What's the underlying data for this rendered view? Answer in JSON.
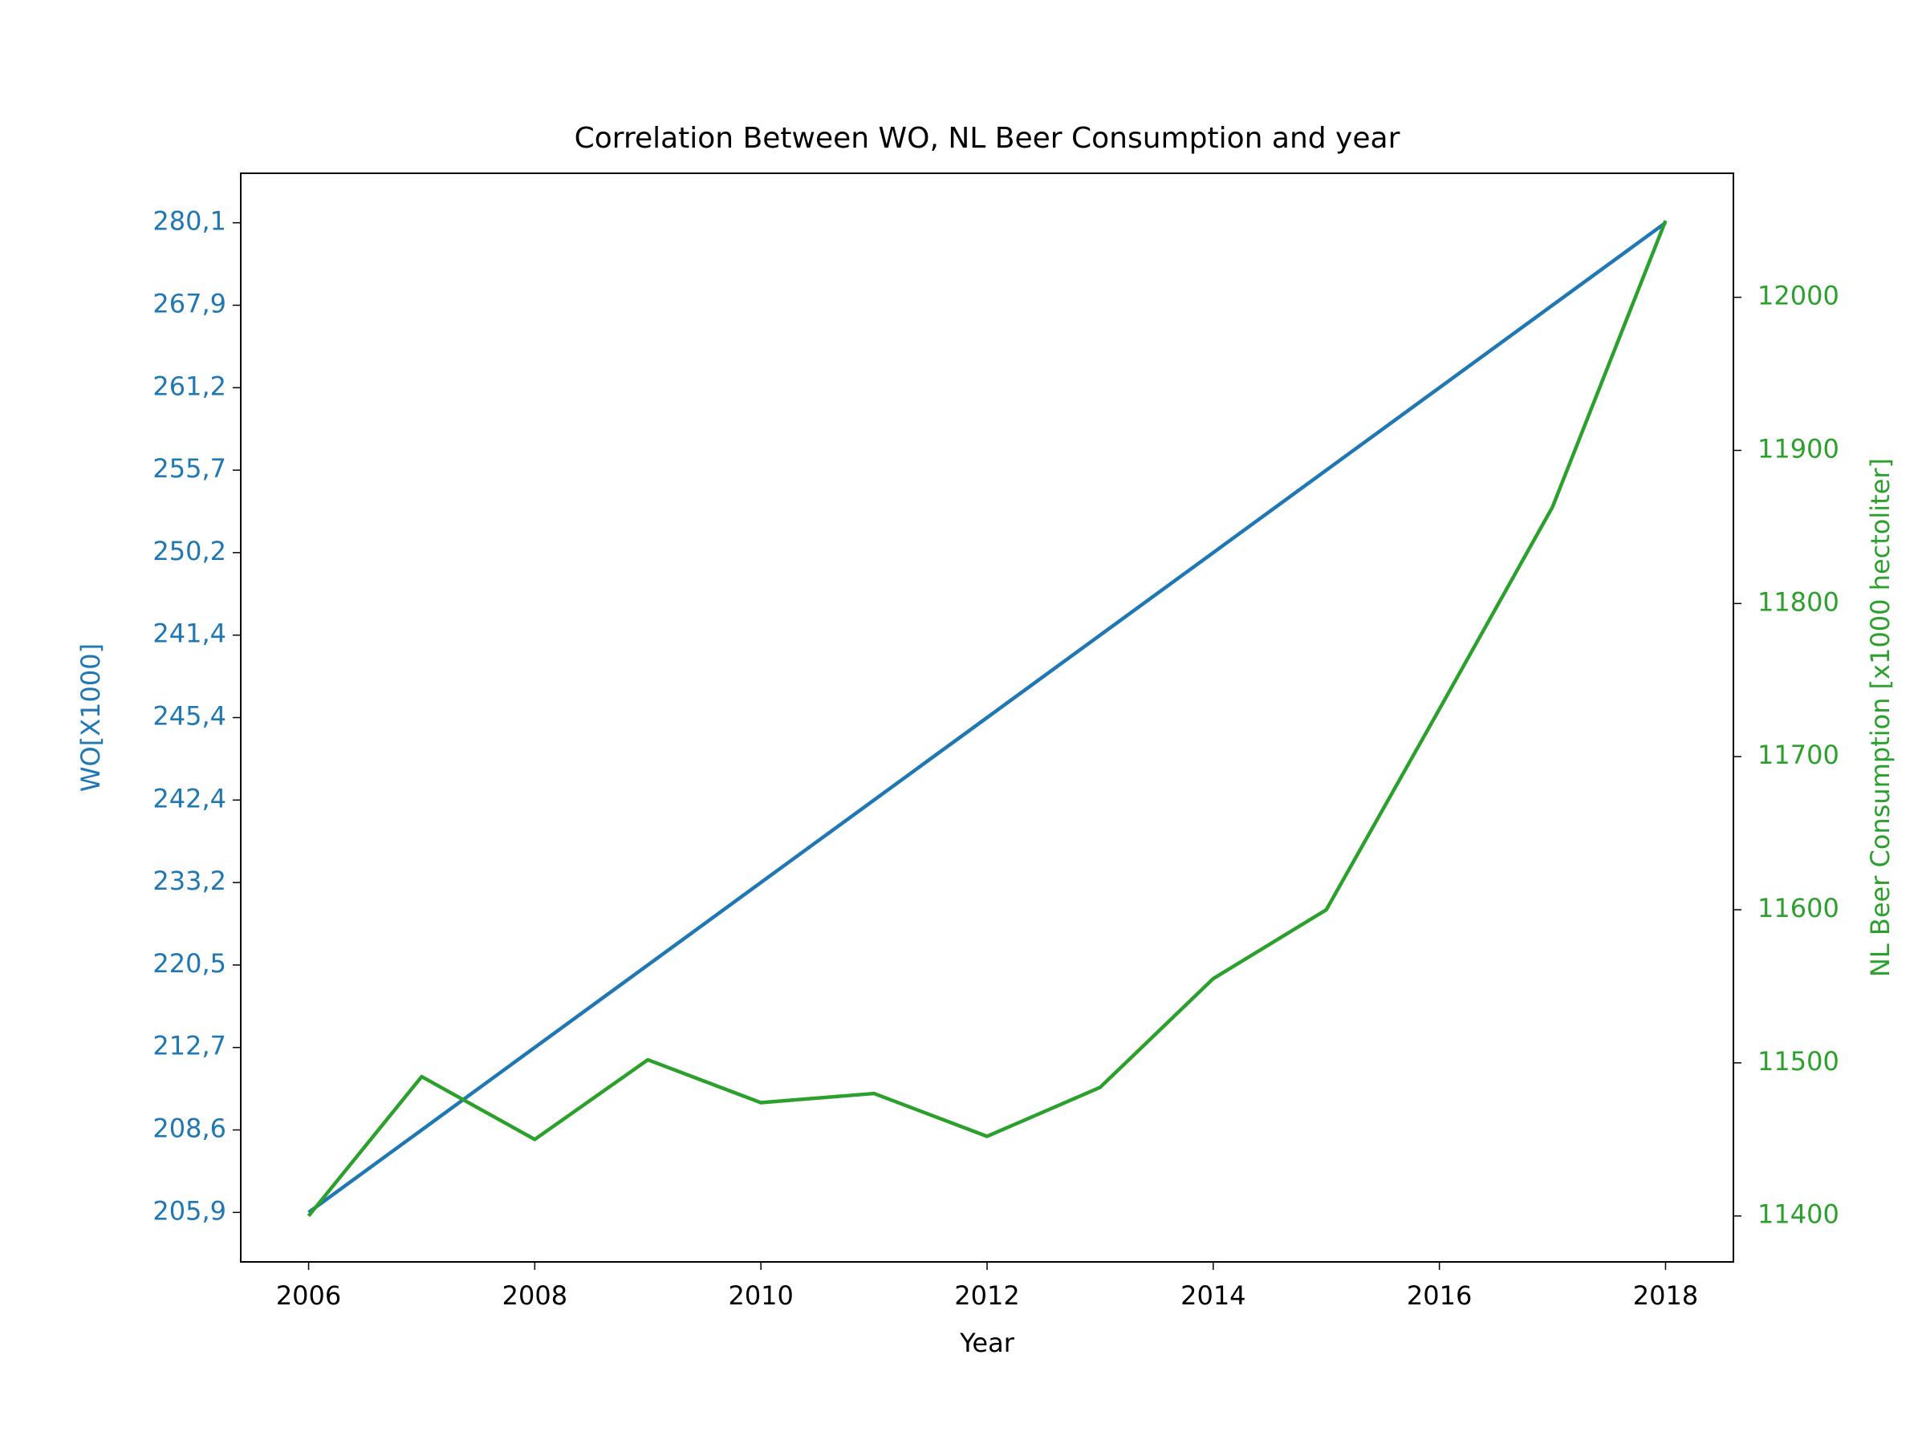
{
  "chart_data": {
    "type": "line",
    "title": "Correlation Between WO, NL Beer Consumption and year",
    "xlabel": "Year",
    "ylabel": "WO[X1000]",
    "y2label": "NL Beer Consumption [x1000 hectoliter]",
    "x": [
      2006,
      2007,
      2008,
      2009,
      2010,
      2011,
      2012,
      2013,
      2014,
      2015,
      2016,
      2017,
      2018
    ],
    "xlim": [
      2005.4,
      2018.6
    ],
    "xticks": [
      2006,
      2008,
      2010,
      2012,
      2014,
      2016,
      2018
    ],
    "ylim": [
      -0.6,
      12.6
    ],
    "yticks": [
      {
        "value": 0,
        "label": "205,9"
      },
      {
        "value": 1,
        "label": "208,6"
      },
      {
        "value": 2,
        "label": "212,7"
      },
      {
        "value": 3,
        "label": "220,5"
      },
      {
        "value": 4,
        "label": "233,2"
      },
      {
        "value": 5,
        "label": "242,4"
      },
      {
        "value": 6,
        "label": "245,4"
      },
      {
        "value": 7,
        "label": "241,4"
      },
      {
        "value": 8,
        "label": "250,2"
      },
      {
        "value": 9,
        "label": "255,7"
      },
      {
        "value": 10,
        "label": "261,2"
      },
      {
        "value": 11,
        "label": "267,9"
      },
      {
        "value": 12,
        "label": "280,1"
      }
    ],
    "y2lim": [
      11370,
      12081
    ],
    "y2ticks": [
      11400,
      11500,
      11600,
      11700,
      11800,
      11900,
      12000
    ],
    "ycolor": "#1f77b4",
    "y2color": "#2ca02c",
    "series": [
      {
        "color": "#1f77b4",
        "values": [
          0,
          1,
          2,
          3,
          4,
          5,
          6,
          7,
          8,
          9,
          10,
          11,
          12
        ]
      },
      {
        "color": "#2ca02c",
        "axis": "y2",
        "values": [
          11400,
          11491,
          11450,
          11502,
          11474,
          11480,
          11452,
          11484,
          11555,
          11600,
          11731,
          11863,
          12050
        ]
      }
    ]
  }
}
